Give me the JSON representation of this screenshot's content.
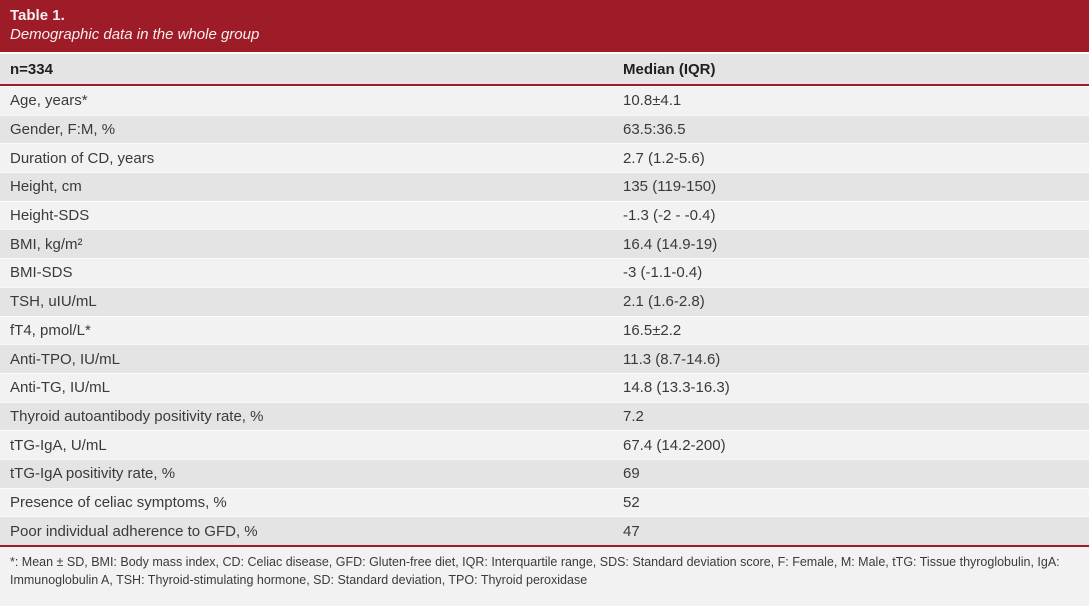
{
  "title": {
    "table_number": "Table 1.",
    "caption": "Demographic data in the whole group"
  },
  "columns": {
    "col1": "n=334",
    "col2": "Median (IQR)"
  },
  "rows": [
    {
      "label": "Age, years*",
      "value": "10.8±4.1"
    },
    {
      "label": "Gender, F:M, %",
      "value": "63.5:36.5"
    },
    {
      "label": "Duration of CD, years",
      "value": "2.7 (1.2-5.6)"
    },
    {
      "label": "Height, cm",
      "value": "135 (119-150)"
    },
    {
      "label": "Height-SDS",
      "value": "-1.3 (-2 - -0.4)"
    },
    {
      "label": "BMI, kg/m²",
      "value": "16.4 (14.9-19)"
    },
    {
      "label": "BMI-SDS",
      "value": "-3 (-1.1-0.4)"
    },
    {
      "label": "TSH, uIU/mL",
      "value": "2.1 (1.6-2.8)"
    },
    {
      "label": "fT4, pmol/L*",
      "value": "16.5±2.2"
    },
    {
      "label": "Anti-TPO, IU/mL",
      "value": "11.3 (8.7-14.6)"
    },
    {
      "label": "Anti-TG, IU/mL",
      "value": "14.8 (13.3-16.3)"
    },
    {
      "label": "Thyroid autoantibody positivity rate, %",
      "value": "7.2"
    },
    {
      "label": "tTG-IgA, U/mL",
      "value": "67.4 (14.2-200)"
    },
    {
      "label": "tTG-IgA positivity rate, %",
      "value": "69"
    },
    {
      "label": "Presence of celiac symptoms, %",
      "value": "52"
    },
    {
      "label": "Poor individual adherence to GFD, %",
      "value": "47"
    }
  ],
  "footnote": "*: Mean ± SD, BMI: Body mass index, CD: Celiac disease, GFD: Gluten-free diet, IQR: Interquartile range, SDS: Standard deviation score, F: Female, M: Male, tTG: Tissue thyroglobulin, IgA: Immunoglobulin A, TSH: Thyroid-stimulating hormone, SD: Standard deviation, TPO: Thyroid peroxidase",
  "colors": {
    "accent_red": "#9e1c28",
    "row_light": "#f2f2f2",
    "row_gray": "#e4e4e4",
    "title_text": "#f7eef0",
    "body_text": "#3a3a3a"
  }
}
